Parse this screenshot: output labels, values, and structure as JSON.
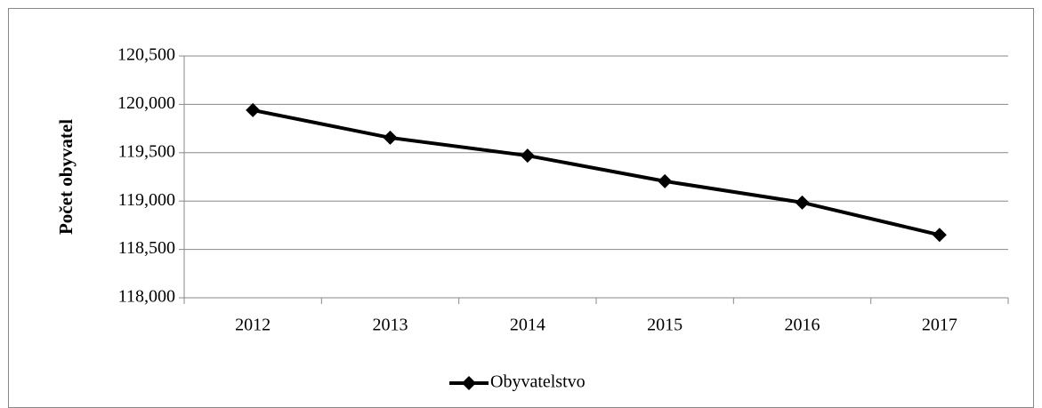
{
  "chart_data": {
    "type": "line",
    "y_label": "Počet obyvatel",
    "categories": [
      "2012",
      "2013",
      "2014",
      "2015",
      "2016",
      "2017"
    ],
    "series": [
      {
        "name": "Obyvatelstvo",
        "color": "#000000",
        "values": [
          119940,
          119655,
          119470,
          119205,
          118985,
          118650
        ]
      }
    ],
    "ylim": [
      118000,
      120500
    ],
    "yticks": [
      {
        "value": 118000,
        "label": "118,000"
      },
      {
        "value": 118500,
        "label": "118,500"
      },
      {
        "value": 119000,
        "label": "119,000"
      },
      {
        "value": 119500,
        "label": "119,500"
      },
      {
        "value": 120000,
        "label": "120,000"
      },
      {
        "value": 120500,
        "label": "120,500"
      }
    ],
    "grid": true,
    "legend": "bottom"
  }
}
